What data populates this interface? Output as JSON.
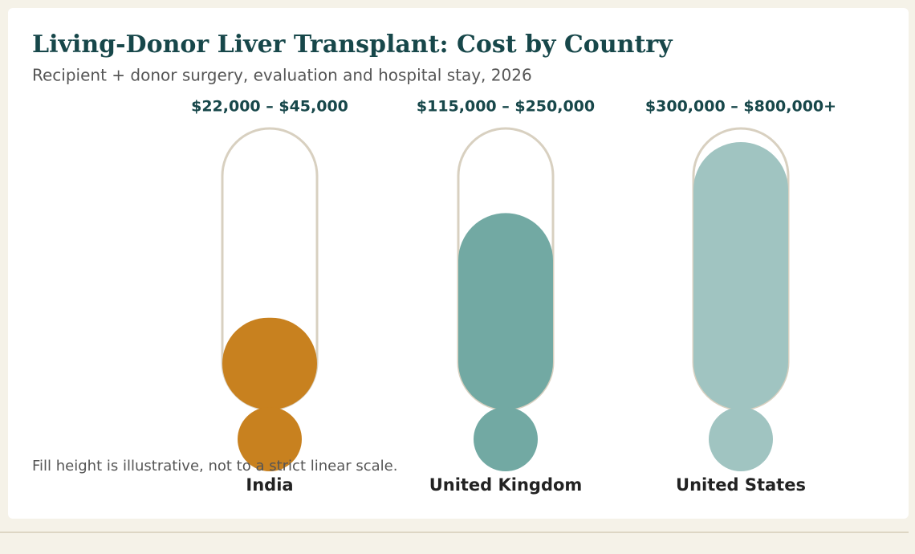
{
  "chart_data": {
    "type": "thermometer",
    "title": "Living-Donor Liver Transplant: Cost by Country",
    "subtitle": "Recipient + donor surgery, evaluation and hospital stay, 2026",
    "categories": [
      "India",
      "United Kingdom",
      "United States"
    ],
    "values": [
      45000,
      250000,
      800000
    ],
    "value_labels": [
      "$22,000 – $45,000",
      "$115,000 – $250,000",
      "$300,000 – $800,000+"
    ],
    "colors": [
      "#c8811f",
      "#72a9a3",
      "#a0c4c1"
    ],
    "log_scale": true,
    "ylim": [
      10000,
      1000000
    ],
    "note": "Fill height is illustrative, not to a strict linear scale."
  }
}
